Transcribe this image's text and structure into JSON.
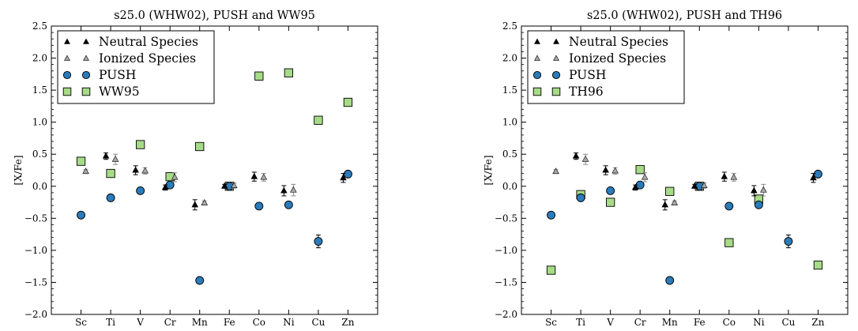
{
  "chart_data": [
    {
      "type": "scatter",
      "title": "s25.0 (WHW02), PUSH and WW95",
      "ylabel": "[X/Fe]",
      "xlabel": "",
      "categories": [
        "Sc",
        "Ti",
        "V",
        "Cr",
        "Mn",
        "Fe",
        "Co",
        "Ni",
        "Cu",
        "Zn"
      ],
      "ylim": [
        -2.0,
        2.5
      ],
      "yticks": [
        "−2.0",
        "−1.5",
        "−1.0",
        "−0.5",
        "0.0",
        "0.5",
        "1.0",
        "1.5",
        "2.0",
        "2.5"
      ],
      "grid": false,
      "legend_position": "top-left",
      "series": [
        {
          "name": "Neutral Species",
          "marker": "triangle",
          "color": "#000000",
          "values": [
            null,
            0.47,
            0.25,
            -0.02,
            -0.29,
            0.0,
            0.15,
            -0.07,
            null,
            0.13
          ],
          "errors": [
            null,
            0.05,
            0.07,
            0.04,
            0.08,
            0.03,
            0.07,
            0.08,
            null,
            0.07
          ]
        },
        {
          "name": "Ionized Species",
          "marker": "triangle",
          "color": "#a9a9a9",
          "values": [
            0.23,
            0.42,
            0.24,
            0.14,
            -0.26,
            0.01,
            0.14,
            -0.06,
            null,
            null
          ],
          "errors": [
            0.03,
            0.08,
            0.05,
            0.07,
            0.03,
            0.04,
            0.06,
            0.09,
            null,
            null
          ]
        },
        {
          "name": "PUSH",
          "marker": "circle",
          "color": "#2b7bba",
          "values": [
            -0.45,
            -0.18,
            -0.07,
            0.02,
            -1.47,
            0.0,
            -0.31,
            -0.29,
            -0.86,
            0.19
          ],
          "errors": [
            null,
            null,
            null,
            null,
            null,
            null,
            null,
            null,
            0.1,
            null
          ]
        },
        {
          "name": "WW95",
          "marker": "square",
          "color": "#a6db87",
          "values": [
            0.39,
            0.2,
            0.65,
            0.15,
            0.62,
            0.0,
            1.72,
            1.77,
            1.03,
            1.31
          ]
        }
      ]
    },
    {
      "type": "scatter",
      "title": "s25.0 (WHW02), PUSH and TH96",
      "ylabel": "[X/Fe]",
      "xlabel": "",
      "categories": [
        "Sc",
        "Ti",
        "V",
        "Cr",
        "Mn",
        "Fe",
        "Co",
        "Ni",
        "Cu",
        "Zn"
      ],
      "ylim": [
        -2.0,
        2.5
      ],
      "yticks": [
        "−2.0",
        "−1.5",
        "−1.0",
        "−0.5",
        "0.0",
        "0.5",
        "1.0",
        "1.5",
        "2.0",
        "2.5"
      ],
      "grid": false,
      "legend_position": "top-left",
      "series": [
        {
          "name": "Neutral Species",
          "marker": "triangle",
          "color": "#000000",
          "values": [
            null,
            0.47,
            0.25,
            -0.02,
            -0.29,
            0.0,
            0.15,
            -0.07,
            null,
            0.13
          ],
          "errors": [
            null,
            0.05,
            0.07,
            0.04,
            0.08,
            0.03,
            0.07,
            0.08,
            null,
            0.07
          ]
        },
        {
          "name": "Ionized Species",
          "marker": "triangle",
          "color": "#a9a9a9",
          "values": [
            0.23,
            0.42,
            0.24,
            0.14,
            -0.26,
            0.01,
            0.14,
            -0.06,
            null,
            null
          ],
          "errors": [
            0.03,
            0.08,
            0.05,
            0.07,
            0.03,
            0.04,
            0.06,
            0.09,
            null,
            null
          ]
        },
        {
          "name": "PUSH",
          "marker": "circle",
          "color": "#2b7bba",
          "values": [
            -0.45,
            -0.18,
            -0.07,
            0.02,
            -1.47,
            0.0,
            -0.31,
            -0.29,
            -0.86,
            0.19
          ],
          "errors": [
            null,
            null,
            null,
            null,
            null,
            null,
            null,
            null,
            0.1,
            null
          ]
        },
        {
          "name": "TH96",
          "marker": "square",
          "color": "#a6db87",
          "values": [
            -1.31,
            -0.13,
            -0.25,
            0.26,
            -0.08,
            0.0,
            -0.88,
            -0.2,
            null,
            -1.23
          ]
        }
      ]
    }
  ]
}
